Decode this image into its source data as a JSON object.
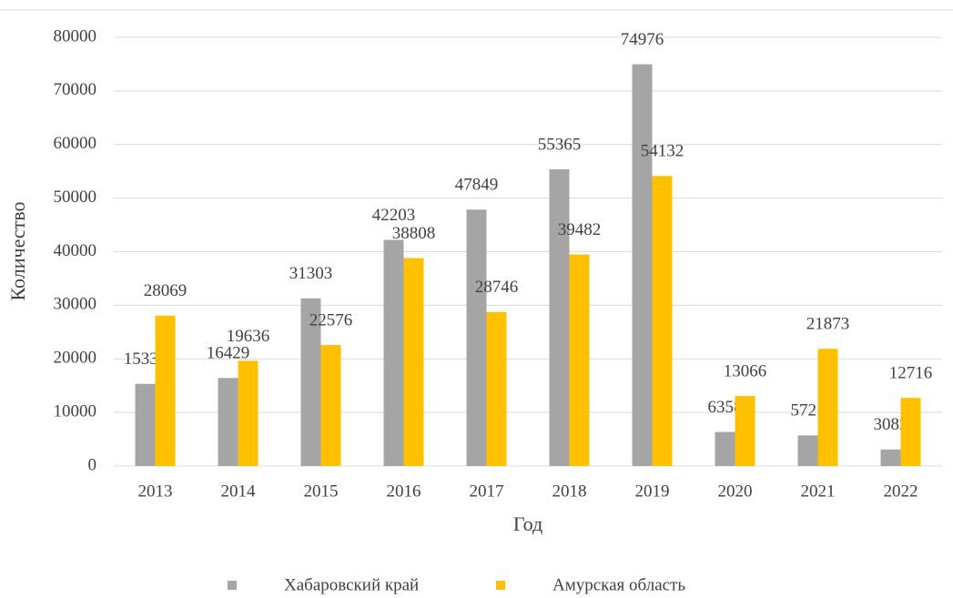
{
  "chart_data": {
    "type": "bar",
    "x_label": "Год",
    "y_label": "Количество",
    "categories": [
      "2013",
      "2014",
      "2015",
      "2016",
      "2017",
      "2018",
      "2019",
      "2020",
      "2021",
      "2022"
    ],
    "series": [
      {
        "name": "Хабаровский край",
        "color": "#a5a5a5",
        "values": [
          15332,
          16429,
          31303,
          42203,
          47849,
          55365,
          74976,
          6358,
          5721,
          3082
        ]
      },
      {
        "name": "Амурская область",
        "color": "#ffc000",
        "values": [
          28069,
          19636,
          22576,
          38808,
          28746,
          39482,
          54132,
          13066,
          21873,
          12716
        ]
      }
    ],
    "ylim": [
      0,
      80000
    ],
    "yticks": [
      0,
      10000,
      20000,
      30000,
      40000,
      50000,
      60000,
      70000,
      80000
    ],
    "grid": true,
    "legend": "bottom"
  }
}
